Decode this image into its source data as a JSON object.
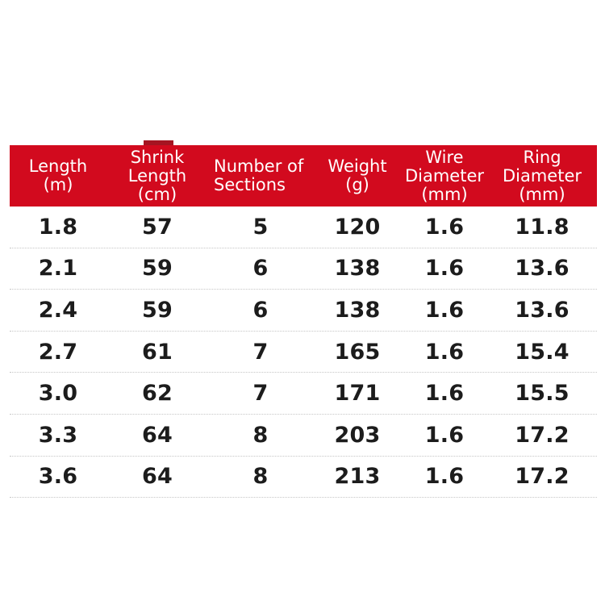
{
  "table": {
    "header_bg": "#d20a1e",
    "accent_dark": "#a51522",
    "header_text_color": "#ffffff",
    "body_text_color": "#1c1c1c",
    "separator_color": "#c6c6c6",
    "columns": [
      {
        "id": "length",
        "lines": [
          "Length",
          "(m)"
        ]
      },
      {
        "id": "shrink-length",
        "lines": [
          "Shrink",
          "Length",
          "(cm)"
        ]
      },
      {
        "id": "sections",
        "lines": [
          "Number of",
          "Sections"
        ]
      },
      {
        "id": "weight",
        "lines": [
          "Weight",
          "(g)"
        ]
      },
      {
        "id": "wire-diameter",
        "lines": [
          "Wire",
          "Diameter",
          "(mm)"
        ]
      },
      {
        "id": "ring-diameter",
        "lines": [
          "Ring",
          "Diameter",
          "(mm)"
        ]
      }
    ],
    "rows": [
      [
        "1.8",
        "57",
        "5",
        "120",
        "1.6",
        "11.8"
      ],
      [
        "2.1",
        "59",
        "6",
        "138",
        "1.6",
        "13.6"
      ],
      [
        "2.4",
        "59",
        "6",
        "138",
        "1.6",
        "13.6"
      ],
      [
        "2.7",
        "61",
        "7",
        "165",
        "1.6",
        "15.4"
      ],
      [
        "3.0",
        "62",
        "7",
        "171",
        "1.6",
        "15.5"
      ],
      [
        "3.3",
        "64",
        "8",
        "203",
        "1.6",
        "17.2"
      ],
      [
        "3.6",
        "64",
        "8",
        "213",
        "1.6",
        "17.2"
      ]
    ]
  },
  "chart_data": {
    "type": "table",
    "title": "",
    "columns": [
      "Length (m)",
      "Shrink Length (cm)",
      "Number of Sections",
      "Weight (g)",
      "Wire Diameter (mm)",
      "Ring Diameter (mm)"
    ],
    "rows": [
      [
        1.8,
        57,
        5,
        120,
        1.6,
        11.8
      ],
      [
        2.1,
        59,
        6,
        138,
        1.6,
        13.6
      ],
      [
        2.4,
        59,
        6,
        138,
        1.6,
        13.6
      ],
      [
        2.7,
        61,
        7,
        165,
        1.6,
        15.4
      ],
      [
        3.0,
        62,
        7,
        171,
        1.6,
        15.5
      ],
      [
        3.3,
        64,
        8,
        203,
        1.6,
        17.2
      ],
      [
        3.6,
        64,
        8,
        213,
        1.6,
        17.2
      ]
    ],
    "layout": {
      "header_bg": "#d20a1e",
      "header_text": "#ffffff",
      "row_separator": "dotted",
      "grid": "rows-only"
    }
  }
}
